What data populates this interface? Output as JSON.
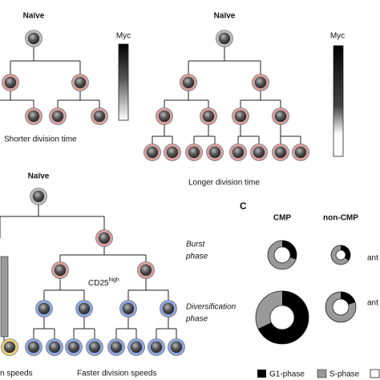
{
  "panel_a": {
    "left": {
      "root_label": "Naïve",
      "gradient_label": "Myc",
      "caption": "Shorter division time"
    },
    "right": {
      "root_label": "Naïve",
      "gradient_label": "Myc",
      "caption": "Longer division time"
    }
  },
  "panel_b": {
    "root_label": "Naïve",
    "marker_label": "CD25",
    "marker_superscript": "high",
    "caption_left": "n speeds",
    "caption_right": "Faster division speeds"
  },
  "panel_c": {
    "letter": "C",
    "columns": [
      "CMP",
      "non-CMP"
    ],
    "rows": [
      {
        "line1": "Burst",
        "line2": "phase",
        "side": "ant"
      },
      {
        "line1": "Diversification",
        "line2": "phase",
        "side": "ant"
      }
    ],
    "legend": [
      "G1-phase",
      "S-phase"
    ]
  }
}
